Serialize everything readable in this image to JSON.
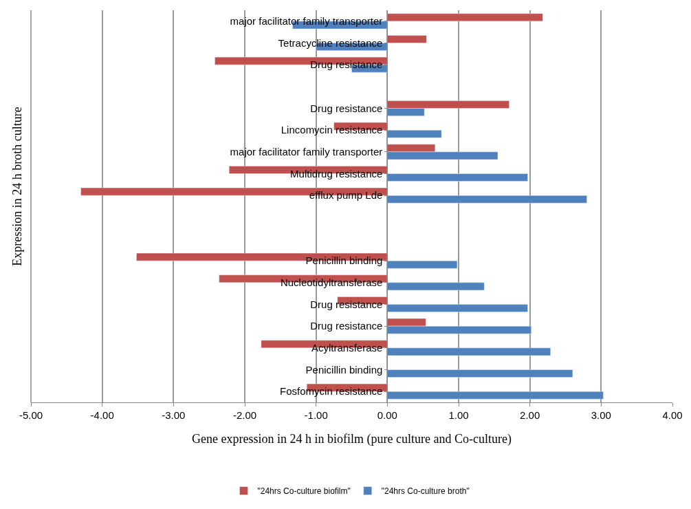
{
  "chart_data": {
    "type": "bar",
    "orientation": "horizontal",
    "xlabel": "Gene expression in 24 h in biofilm (pure culture and Co-culture)",
    "ylabel": "Expression in 24 h broth culture",
    "categories": [
      "major facilitator family transporter",
      "Tetracycline resistance",
      "Drug resistance",
      null,
      "Drug resistance",
      "Lincomycin resistance",
      "major facilitator family transporter",
      "Multidrug resistance",
      "efflux pump Lde",
      null,
      null,
      "Penicillin binding",
      "Nucleotidyltransferase",
      "Drug resistance",
      "Drug resistance",
      "Acyltransferase",
      "Penicillin binding",
      "Fosfomycin resistance"
    ],
    "series": [
      {
        "name": "\"24hrs Co-culture biofilm\"",
        "color": "#c0504d",
        "values": [
          2.18,
          0.55,
          -2.42,
          null,
          1.71,
          -0.75,
          0.67,
          -2.22,
          -4.3,
          null,
          null,
          -3.52,
          -2.36,
          -0.7,
          0.54,
          -1.77,
          null,
          -1.13
        ]
      },
      {
        "name": "\"24hrs Co-culture broth\"",
        "color": "#4f81bd",
        "values": [
          -1.33,
          -1.0,
          -0.5,
          null,
          0.52,
          0.76,
          1.55,
          1.97,
          2.8,
          null,
          null,
          0.98,
          1.36,
          1.97,
          2.02,
          2.29,
          2.6,
          3.03
        ]
      }
    ],
    "xlim": [
      -5,
      4
    ],
    "xticks": [
      {
        "value": -5,
        "label": "-5.00"
      },
      {
        "value": -4,
        "label": "-4.00"
      },
      {
        "value": -3,
        "label": "-3.00"
      },
      {
        "value": -2,
        "label": "-2.00"
      },
      {
        "value": -1,
        "label": "-1.00"
      },
      {
        "value": 0,
        "label": "0.00"
      },
      {
        "value": 1,
        "label": "1.00"
      },
      {
        "value": 2,
        "label": "2.00"
      },
      {
        "value": 3,
        "label": "3.00"
      },
      {
        "value": 4,
        "label": "4.00"
      }
    ],
    "grid": "x",
    "legend": "bottom"
  }
}
